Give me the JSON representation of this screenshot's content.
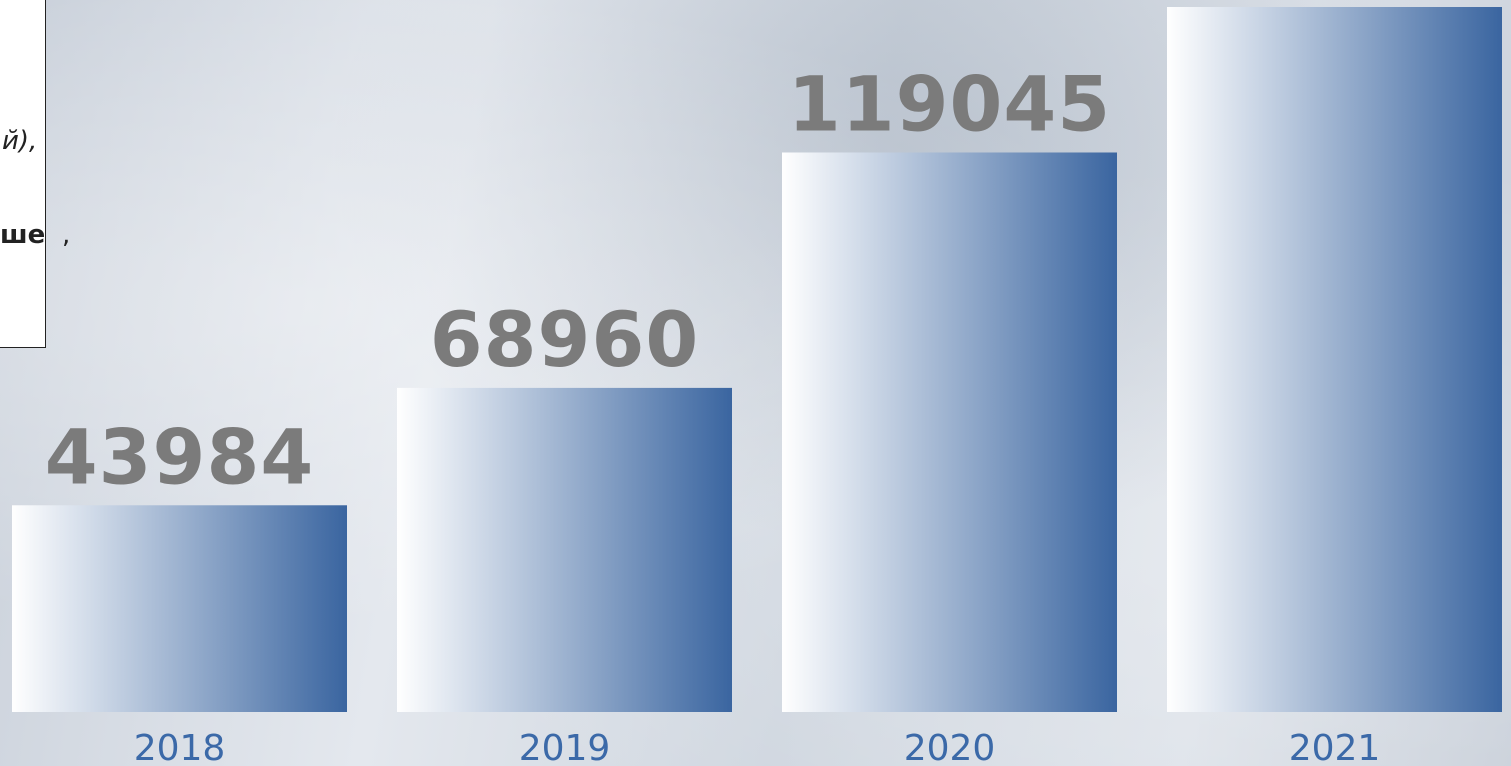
{
  "text_box": {
    "fragments": [
      "й),",
      "ше",
      ","
    ]
  },
  "chart_data": {
    "type": "bar",
    "categories": [
      "2018",
      "2019",
      "2020",
      "2021"
    ],
    "values": [
      43984,
      68960,
      119045,
      150000
    ],
    "color": "#3a65a0"
  }
}
